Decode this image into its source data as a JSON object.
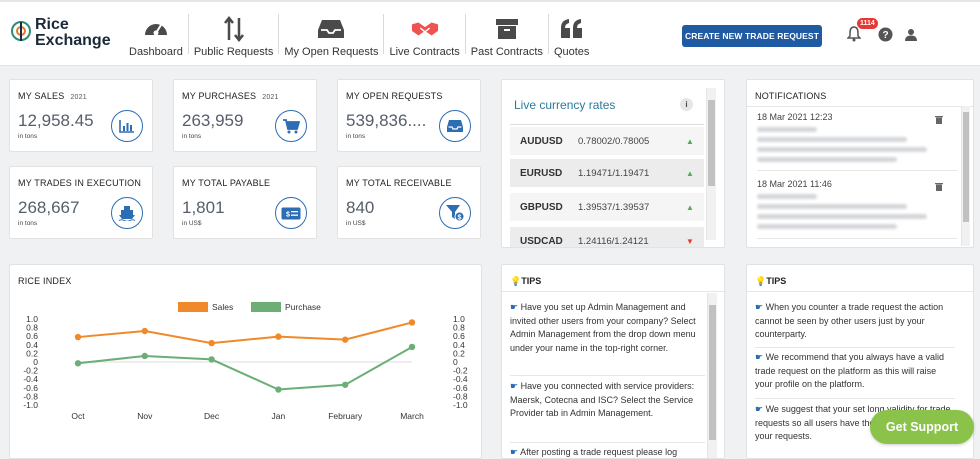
{
  "brand": {
    "line1": "Rice",
    "line2": "Exchange"
  },
  "nav": [
    {
      "label": "Dashboard",
      "icon": "gauge-icon"
    },
    {
      "label": "Public Requests",
      "icon": "updown-arrows-icon"
    },
    {
      "label": "My Open Requests",
      "icon": "inbox-tray-icon"
    },
    {
      "label": "Live Contracts",
      "icon": "handshake-icon"
    },
    {
      "label": "Past Contracts",
      "icon": "archive-box-icon"
    },
    {
      "label": "Quotes",
      "icon": "quote-icon"
    }
  ],
  "header": {
    "cta_label": "CREATE NEW TRADE REQUEST",
    "notif_count": "1114"
  },
  "stats": [
    {
      "title": "MY SALES",
      "year": "2021",
      "value": "12,958.45",
      "unit": "in tons",
      "icon": "bar-chart-icon"
    },
    {
      "title": "MY PURCHASES",
      "year": "2021",
      "value": "263,959",
      "unit": "in tons",
      "icon": "cart-icon"
    },
    {
      "title": "MY OPEN REQUESTS",
      "year": "",
      "value": "539,836....",
      "unit": "in tons",
      "icon": "inbox-icon"
    },
    {
      "title": "MY TRADES IN EXECUTION",
      "year": "",
      "value": "268,667",
      "unit": "in tons",
      "icon": "ship-icon"
    },
    {
      "title": "MY TOTAL PAYABLE",
      "year": "",
      "value": "1,801",
      "unit": "in US$",
      "icon": "cheque-icon"
    },
    {
      "title": "MY TOTAL RECEIVABLE",
      "year": "",
      "value": "840",
      "unit": "in US$",
      "icon": "funnel-dollar-icon"
    }
  ],
  "currency": {
    "title": "Live currency rates",
    "info": "i",
    "rows": [
      {
        "pair": "AUDUSD",
        "rate": "0.78002/0.78005",
        "dir": "▲",
        "color": "#4caf50"
      },
      {
        "pair": "EURUSD",
        "rate": "1.19471/1.19471",
        "dir": "▲",
        "color": "#4caf50"
      },
      {
        "pair": "GBPUSD",
        "rate": "1.39537/1.39537",
        "dir": "▲",
        "color": "#4caf50"
      },
      {
        "pair": "USDCAD",
        "rate": "1.24116/1.24121",
        "dir": "▼",
        "color": "#e53935"
      }
    ]
  },
  "notifications": {
    "title": "NOTIFICATIONS",
    "items": [
      {
        "date": "18 Mar 2021 12:23"
      },
      {
        "date": "18 Mar 2021 11:46"
      }
    ]
  },
  "rice_index": {
    "title": "RICE INDEX"
  },
  "chart_data": {
    "type": "line",
    "categories": [
      "Oct",
      "Nov",
      "Dec",
      "Jan",
      "February",
      "March"
    ],
    "series": [
      {
        "name": "Sales",
        "color": "#f0892a",
        "values": [
          0.58,
          0.72,
          0.44,
          0.59,
          0.52,
          0.92
        ]
      },
      {
        "name": "Purchase",
        "color": "#6cae75",
        "values": [
          -0.03,
          0.14,
          0.06,
          -0.64,
          -0.53,
          0.35
        ]
      }
    ],
    "ylim": [
      -1.0,
      1.0
    ],
    "yticks": [
      "1.0",
      "0.8",
      "0.6",
      "0.4",
      "0.2",
      "0",
      "-0.2",
      "-0.4",
      "-0.6",
      "-0.8",
      "-1.0"
    ],
    "legend": "top"
  },
  "tips_left": {
    "title": "TIPS",
    "items": [
      "Have you set up Admin Management and invited other users from your company? Select Admin Management from the drop down menu under your name in the top-right corner.",
      "Have you connected with service providers: Maersk, Cotecna and ISC? Select the Service Provider tab in Admin Management.",
      "After posting a trade request please log"
    ]
  },
  "tips_right": {
    "title": "TIPS",
    "items": [
      "When you counter a trade request the action cannot be seen by other users just by your counterparty.",
      "We recommend that you always have a valid trade request on the platform as this will raise your profile on the platform.",
      "We suggest that your set long validity for trade requests so all users have the opportunity to see your requests."
    ]
  },
  "support": {
    "label": "Get Support"
  }
}
